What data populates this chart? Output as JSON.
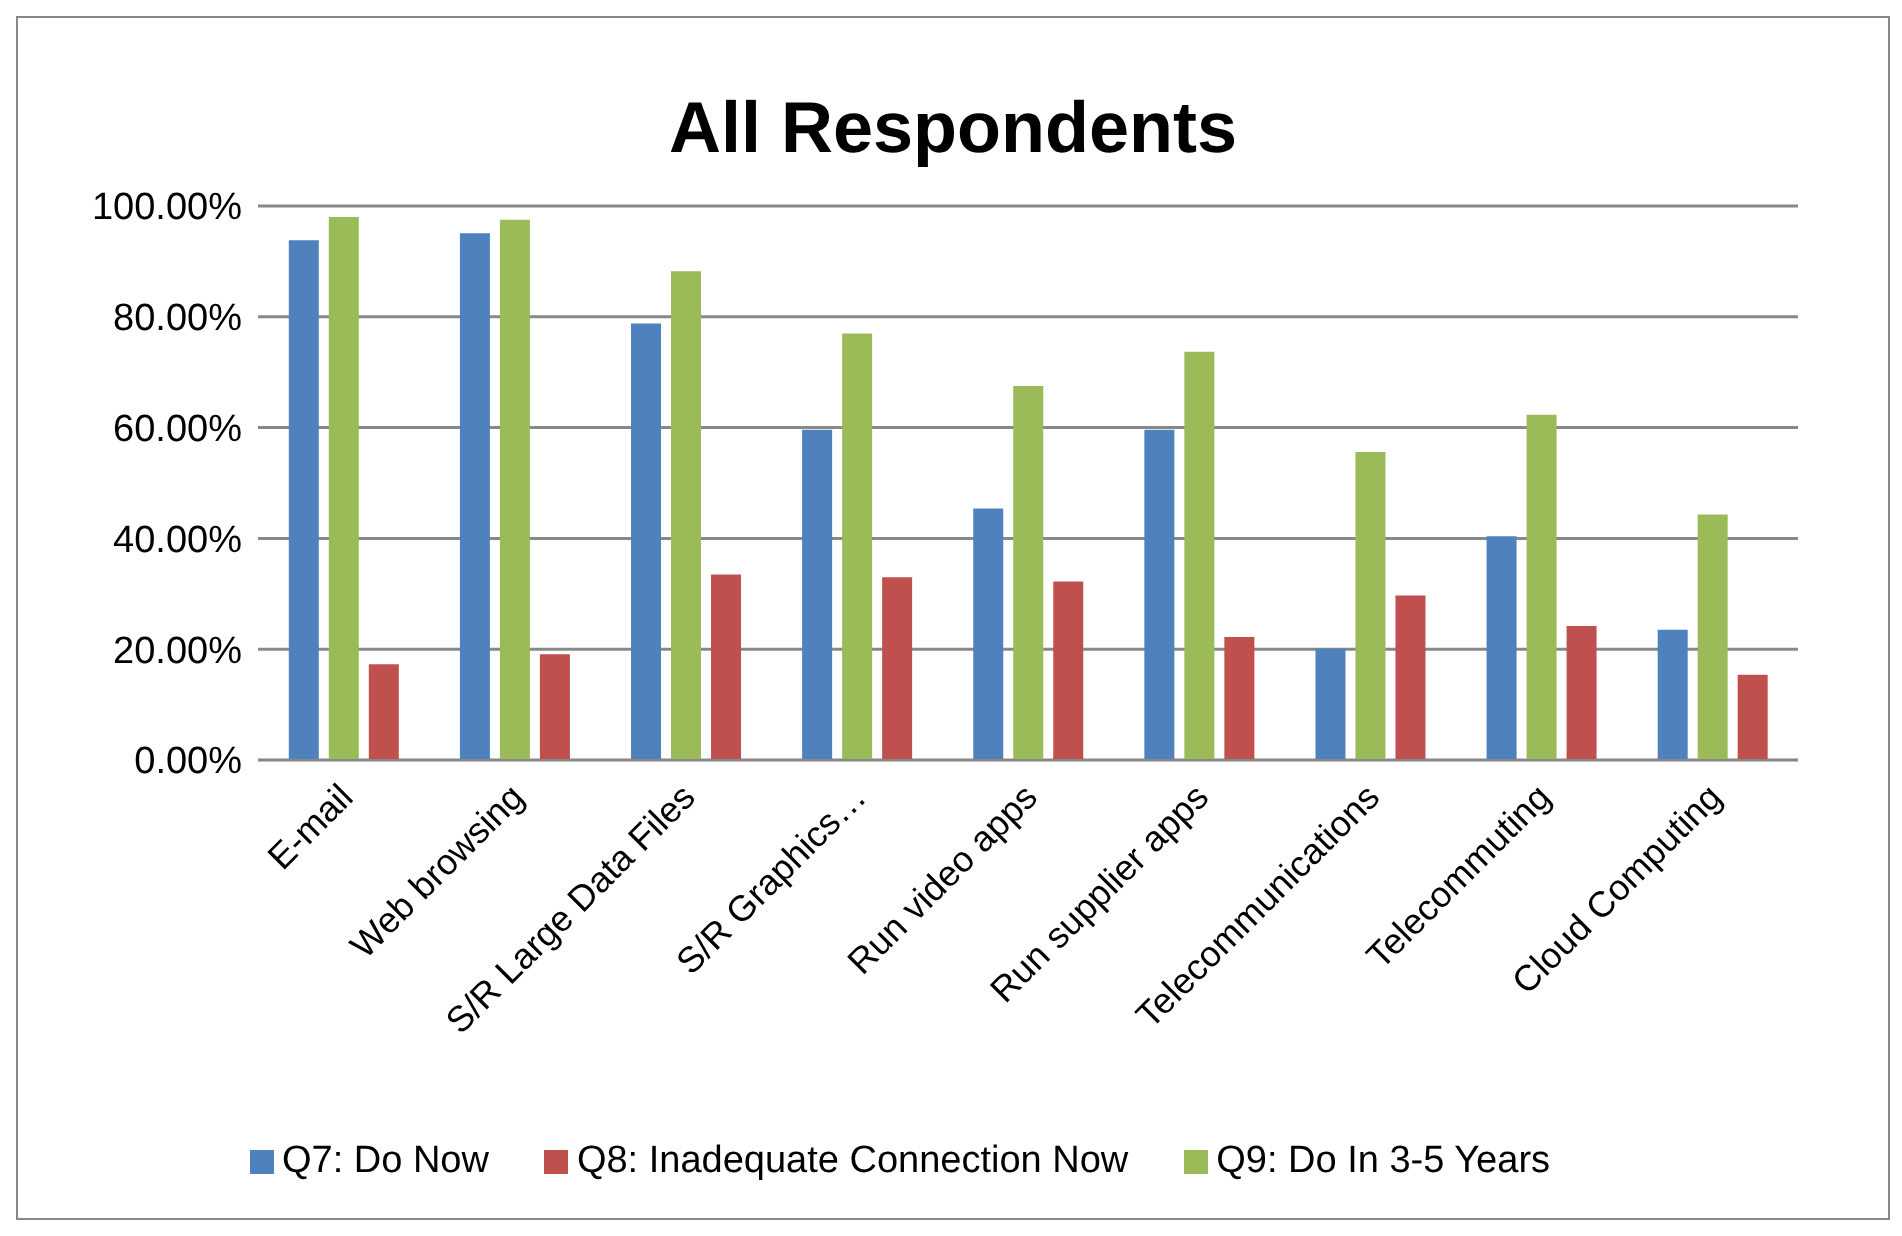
{
  "chart_data": {
    "type": "bar",
    "title": "All Respondents",
    "categories": [
      "E-mail",
      "Web browsing",
      "S/R Large Data Files",
      "S/R Graphics…",
      "Run video apps",
      "Run supplier apps",
      "Telecommunications",
      "Telecommuting",
      "Cloud Computing"
    ],
    "series": [
      {
        "name": "Q7: Do Now",
        "color": "#4f81bd",
        "values": [
          93.8,
          95.1,
          78.8,
          59.6,
          45.4,
          59.6,
          20.1,
          40.4,
          23.5
        ]
      },
      {
        "name": "Q9: Do In 3-5 Years",
        "color": "#9bbb59",
        "values": [
          98.0,
          97.5,
          88.2,
          77.0,
          67.5,
          73.7,
          55.6,
          62.3,
          44.3
        ]
      },
      {
        "name": "Q8: Inadequate Connection Now",
        "color": "#c0504d",
        "values": [
          17.3,
          19.1,
          33.5,
          33.0,
          32.2,
          22.2,
          29.7,
          24.2,
          15.4
        ]
      }
    ],
    "ylim": [
      0,
      100
    ],
    "yticks": [
      {
        "value": 0,
        "label": "0.00%"
      },
      {
        "value": 20,
        "label": "20.00%"
      },
      {
        "value": 40,
        "label": "40.00%"
      },
      {
        "value": 60,
        "label": "60.00%"
      },
      {
        "value": 80,
        "label": "80.00%"
      },
      {
        "value": 100,
        "label": "100.00%"
      }
    ],
    "grid": "y",
    "legend": "bottom"
  }
}
